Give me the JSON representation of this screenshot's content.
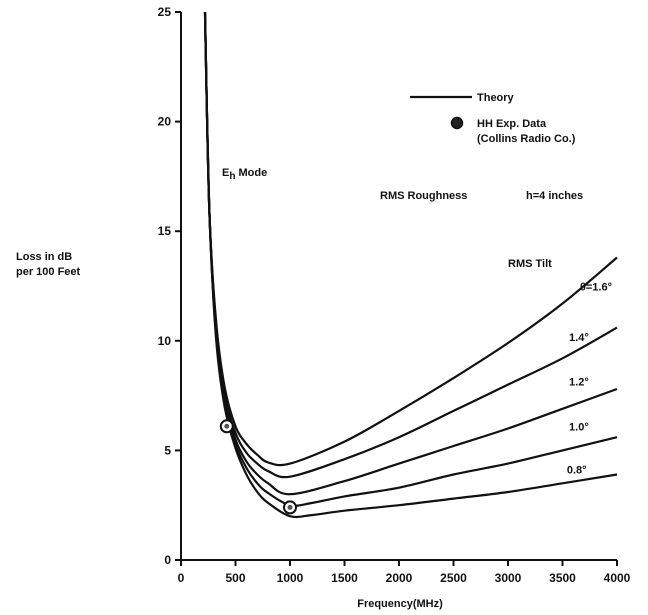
{
  "chart_data": {
    "type": "line",
    "xlabel": "Frequency(MHz)",
    "ylabel_lines": [
      "Loss in dB",
      "per 100 Feet"
    ],
    "xlim": [
      0,
      4000
    ],
    "ylim": [
      0,
      25
    ],
    "x_ticks": [
      "0",
      "500",
      "1000",
      "1500",
      "2000",
      "2500",
      "3000",
      "3500",
      "4000"
    ],
    "y_ticks": [
      "0",
      "5",
      "10",
      "15",
      "20",
      "25"
    ],
    "grid": false,
    "legend": {
      "placement": "top-right",
      "theory_label": "Theory",
      "data_label_lines": [
        "HH Exp. Data",
        "(Collins Radio Co.)"
      ]
    },
    "annotations": {
      "mode_main": "E",
      "mode_sub": "h",
      "mode_rest": " Mode",
      "roughness": "RMS Roughness",
      "roughness_value": "h=4 inches",
      "tilt_title": "RMS Tilt"
    },
    "series": [
      {
        "label": "θ=1.6°",
        "points": [
          [
            220,
            25
          ],
          [
            260,
            16
          ],
          [
            320,
            11
          ],
          [
            400,
            7.9
          ],
          [
            500,
            6.1
          ],
          [
            600,
            5.3
          ],
          [
            700,
            4.8
          ],
          [
            800,
            4.45
          ],
          [
            1000,
            4.4
          ],
          [
            1500,
            5.4
          ],
          [
            2000,
            6.8
          ],
          [
            2500,
            8.3
          ],
          [
            3000,
            9.9
          ],
          [
            3500,
            11.7
          ],
          [
            4000,
            13.8
          ]
        ]
      },
      {
        "label": "1.4°",
        "points": [
          [
            220,
            25
          ],
          [
            260,
            16
          ],
          [
            320,
            10.8
          ],
          [
            400,
            7.6
          ],
          [
            500,
            5.8
          ],
          [
            600,
            4.9
          ],
          [
            700,
            4.4
          ],
          [
            800,
            4.05
          ],
          [
            1000,
            3.8
          ],
          [
            1500,
            4.6
          ],
          [
            2000,
            5.6
          ],
          [
            2500,
            6.8
          ],
          [
            3000,
            8.0
          ],
          [
            3500,
            9.2
          ],
          [
            4000,
            10.6
          ]
        ]
      },
      {
        "label": "1.2°",
        "points": [
          [
            220,
            25
          ],
          [
            260,
            16
          ],
          [
            320,
            10.6
          ],
          [
            400,
            7.4
          ],
          [
            500,
            5.5
          ],
          [
            600,
            4.5
          ],
          [
            700,
            3.9
          ],
          [
            800,
            3.5
          ],
          [
            1000,
            3.0
          ],
          [
            1500,
            3.6
          ],
          [
            2000,
            4.4
          ],
          [
            2500,
            5.2
          ],
          [
            3000,
            6.0
          ],
          [
            3500,
            6.9
          ],
          [
            4000,
            7.8
          ]
        ]
      },
      {
        "label": "1.0°",
        "points": [
          [
            220,
            25
          ],
          [
            260,
            16
          ],
          [
            320,
            10.4
          ],
          [
            400,
            7.2
          ],
          [
            500,
            5.3
          ],
          [
            600,
            4.2
          ],
          [
            700,
            3.5
          ],
          [
            800,
            3.05
          ],
          [
            1000,
            2.5
          ],
          [
            1200,
            2.6
          ],
          [
            1500,
            2.9
          ],
          [
            2000,
            3.3
          ],
          [
            2500,
            3.9
          ],
          [
            3000,
            4.4
          ],
          [
            3500,
            5.0
          ],
          [
            4000,
            5.6
          ]
        ]
      },
      {
        "label": "0.8°",
        "points": [
          [
            220,
            25
          ],
          [
            260,
            16
          ],
          [
            320,
            10.2
          ],
          [
            400,
            7.0
          ],
          [
            500,
            5.1
          ],
          [
            600,
            3.9
          ],
          [
            700,
            3.1
          ],
          [
            800,
            2.6
          ],
          [
            1000,
            2.0
          ],
          [
            1200,
            2.05
          ],
          [
            1500,
            2.25
          ],
          [
            2000,
            2.5
          ],
          [
            2500,
            2.8
          ],
          [
            3000,
            3.1
          ],
          [
            3500,
            3.5
          ],
          [
            4000,
            3.9
          ]
        ]
      }
    ],
    "data_points": [
      [
        420,
        6.1
      ],
      [
        1000,
        2.4
      ]
    ]
  }
}
